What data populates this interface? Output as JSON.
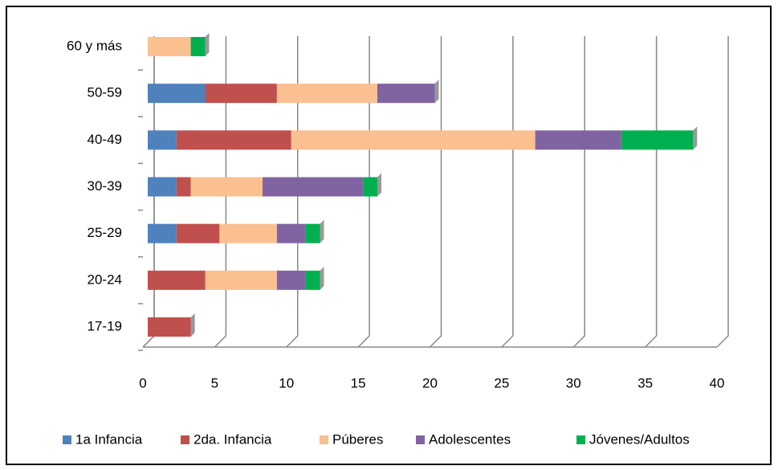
{
  "chart_data": {
    "type": "bar",
    "orientation": "horizontal",
    "stacked": true,
    "categories": [
      "17-19",
      "20-24",
      "25-29",
      "30-39",
      "40-49",
      "50-59",
      "60 y más"
    ],
    "series": [
      {
        "name": "1a Infancia",
        "color": "#4f81bd",
        "values": [
          0,
          0,
          2,
          2,
          2,
          4,
          0
        ]
      },
      {
        "name": "2da. Infancia",
        "color": "#c0504d",
        "values": [
          3,
          4,
          3,
          1,
          8,
          5,
          0
        ]
      },
      {
        "name": "Púberes",
        "color": "#fac090",
        "values": [
          0,
          5,
          4,
          5,
          17,
          7,
          3
        ]
      },
      {
        "name": "Adolescentes",
        "color": "#8064a2",
        "values": [
          0,
          2,
          2,
          7,
          6,
          4,
          0
        ]
      },
      {
        "name": "Jóvenes/Adultos",
        "color": "#00b050",
        "values": [
          0,
          1,
          1,
          1,
          5,
          0,
          1
        ]
      }
    ],
    "xlim": [
      0,
      40
    ],
    "xticks": [
      0,
      5,
      10,
      15,
      20,
      25,
      30,
      35,
      40
    ],
    "grid": true,
    "legend": "bottom"
  }
}
